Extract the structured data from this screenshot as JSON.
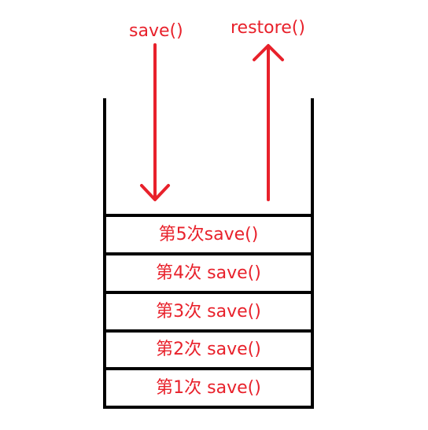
{
  "operations": {
    "save_label": "save()",
    "restore_label": "restore()"
  },
  "stack": {
    "items": [
      {
        "label": "第5次save()"
      },
      {
        "label": "第4次 save()"
      },
      {
        "label": "第3次 save()"
      },
      {
        "label": "第2次 save()"
      },
      {
        "label": "第1次 save()"
      }
    ]
  },
  "colors": {
    "accent": "#e8212b",
    "outline": "#000000"
  }
}
